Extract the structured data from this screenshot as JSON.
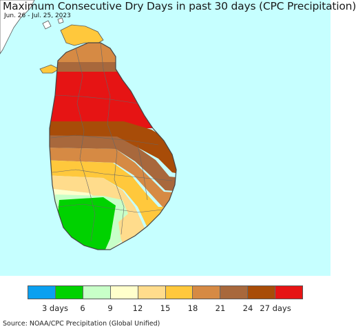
{
  "title": "Maximum Consecutive Dry Days in past 30 days (CPC Precipitation)",
  "subtitle": "Jun. 26 - Jul. 25, 2023",
  "source": "Source: NOAA/CPC Precipitation (Global Unified)",
  "colors": {
    "ocean": "#c6ffff",
    "land_india": "#ffffff",
    "border": "#555555"
  },
  "legend": {
    "colors": [
      "#0aa0f0",
      "#00d200",
      "#c8ffc8",
      "#ffffcc",
      "#ffdc8c",
      "#ffc83c",
      "#d68a44",
      "#a8683c",
      "#a84c08",
      "#e61414"
    ],
    "labels": [
      "3 days",
      "6",
      "9",
      "12",
      "15",
      "18",
      "21",
      "24",
      "27 days"
    ]
  },
  "zones": [
    {
      "label": "27 days",
      "color": "#e61414"
    },
    {
      "label": "24",
      "color": "#a84c08"
    },
    {
      "label": "21",
      "color": "#a8683c"
    },
    {
      "label": "18",
      "color": "#d68a44"
    },
    {
      "label": "15",
      "color": "#ffc83c"
    },
    {
      "label": "12",
      "color": "#ffdc8c"
    },
    {
      "label": "9",
      "color": "#ffffcc"
    },
    {
      "label": "6",
      "color": "#c8ffc8"
    },
    {
      "label": "3 days",
      "color": "#00d200"
    }
  ]
}
